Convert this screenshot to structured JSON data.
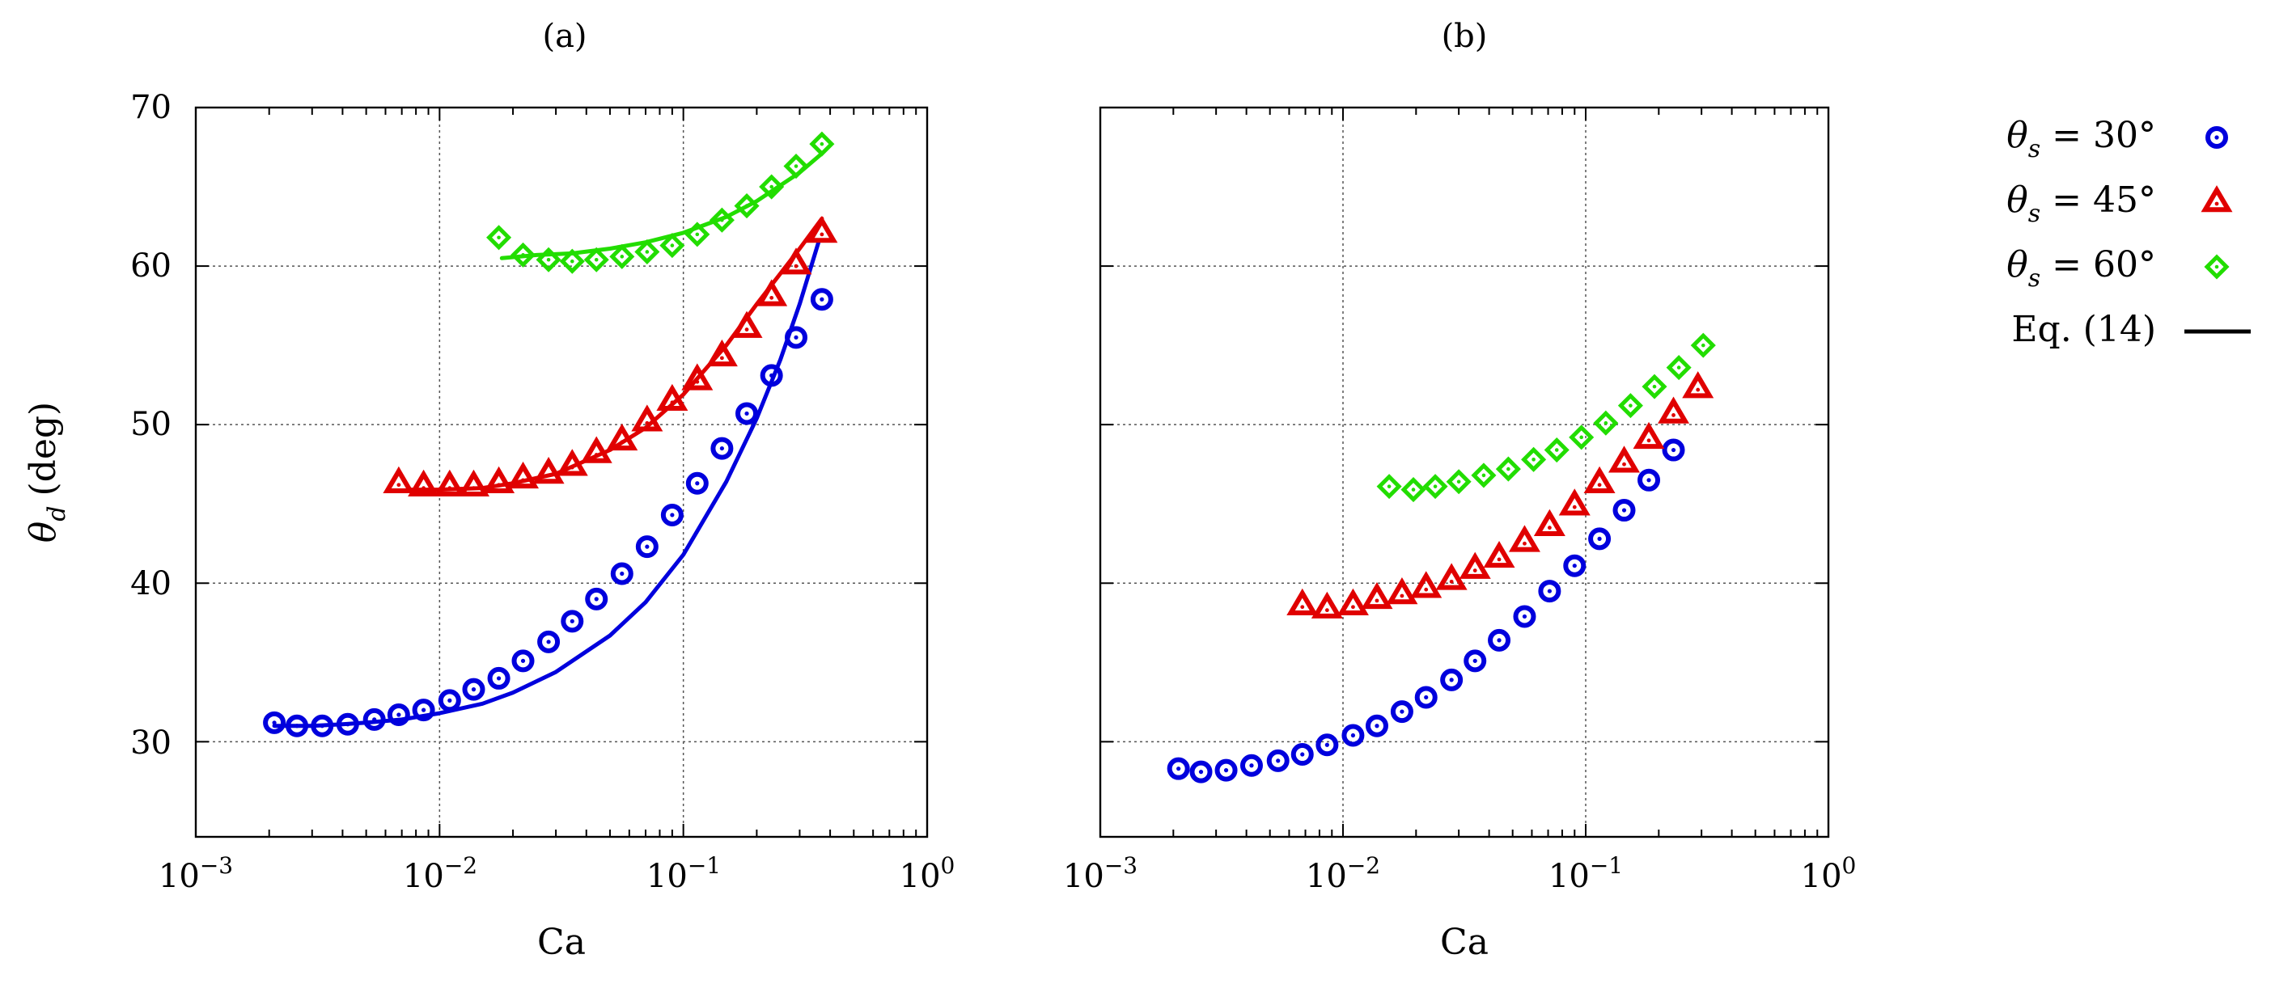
{
  "chart_data": {
    "type": "scatter",
    "y_axis_label": {
      "symbol": "θ",
      "subscript": "d",
      "unit": "(deg)"
    },
    "x_scale": "log",
    "xlim": [
      0.001,
      1
    ],
    "ylim": [
      24,
      70
    ],
    "y_ticks": [
      30,
      40,
      50,
      60,
      70
    ],
    "x_ticks": [
      {
        "value": 0.001,
        "base": "10",
        "exp": "−3"
      },
      {
        "value": 0.01,
        "base": "10",
        "exp": "−2"
      },
      {
        "value": 0.1,
        "base": "10",
        "exp": "−1"
      },
      {
        "value": 1,
        "base": "10",
        "exp": "0"
      }
    ],
    "xlabel": "Ca",
    "legend": {
      "position": "right",
      "entries": [
        {
          "symbol": "θ",
          "subscript": "s",
          "rest": " = 30°",
          "marker": "circle",
          "color": "#0000dd"
        },
        {
          "symbol": "θ",
          "subscript": "s",
          "rest": " = 45°",
          "marker": "triangle",
          "color": "#e00000"
        },
        {
          "symbol": "θ",
          "subscript": "s",
          "rest": " = 60°",
          "marker": "diamond",
          "color": "#22dd00"
        },
        {
          "text": "Eq. (14)",
          "marker": "line",
          "color": "#000000"
        }
      ]
    },
    "panels": [
      {
        "title": "(a)",
        "series": [
          {
            "name": "θs = 30°",
            "marker": "circle",
            "color": "#0000dd",
            "x": [
              0.0021,
              0.0026,
              0.0033,
              0.0042,
              0.0054,
              0.0068,
              0.0086,
              0.011,
              0.0138,
              0.0175,
              0.022,
              0.028,
              0.035,
              0.044,
              0.056,
              0.071,
              0.09,
              0.114,
              0.144,
              0.182,
              0.23,
              0.29,
              0.37
            ],
            "y": [
              31.2,
              31.0,
              31.0,
              31.1,
              31.4,
              31.7,
              32.0,
              32.6,
              33.3,
              34.0,
              35.1,
              36.3,
              37.6,
              39.0,
              40.6,
              42.3,
              44.3,
              46.3,
              48.5,
              50.7,
              53.1,
              55.5,
              57.9
            ]
          },
          {
            "name": "θs = 45°",
            "marker": "triangle",
            "color": "#e00000",
            "x": [
              0.0068,
              0.0086,
              0.011,
              0.0138,
              0.0175,
              0.022,
              0.028,
              0.035,
              0.044,
              0.056,
              0.071,
              0.09,
              0.114,
              0.144,
              0.182,
              0.23,
              0.29,
              0.37
            ],
            "y": [
              46.3,
              46.1,
              46.1,
              46.1,
              46.3,
              46.6,
              46.9,
              47.4,
              48.2,
              49.0,
              50.2,
              51.5,
              52.8,
              54.3,
              56.1,
              58.1,
              60.1,
              62.1
            ]
          },
          {
            "name": "θs = 60°",
            "marker": "diamond",
            "color": "#22dd00",
            "x": [
              0.0175,
              0.022,
              0.028,
              0.035,
              0.044,
              0.056,
              0.071,
              0.09,
              0.114,
              0.144,
              0.182,
              0.23,
              0.29,
              0.37
            ],
            "y": [
              61.8,
              60.7,
              60.4,
              60.3,
              60.4,
              60.6,
              60.9,
              61.3,
              62.0,
              62.9,
              63.8,
              65.0,
              66.3,
              67.7
            ]
          },
          {
            "name": "Eq. (14) θs = 30°",
            "marker": "line",
            "color": "#0000dd",
            "x": [
              0.0021,
              0.003,
              0.004,
              0.005,
              0.007,
              0.01,
              0.015,
              0.02,
              0.03,
              0.05,
              0.07,
              0.1,
              0.15,
              0.2,
              0.25,
              0.3,
              0.36
            ],
            "y": [
              31.0,
              31.0,
              31.1,
              31.2,
              31.4,
              31.8,
              32.4,
              33.1,
              34.4,
              36.7,
              38.8,
              41.8,
              46.4,
              50.4,
              54.1,
              57.6,
              61.6
            ]
          },
          {
            "name": "Eq. (14) θs = 45°",
            "marker": "line",
            "color": "#e00000",
            "x": [
              0.0075,
              0.01,
              0.015,
              0.02,
              0.03,
              0.05,
              0.07,
              0.1,
              0.15,
              0.2,
              0.3,
              0.37
            ],
            "y": [
              45.9,
              45.9,
              46.0,
              46.3,
              46.9,
              48.4,
              49.8,
              51.9,
              55.0,
              57.6,
              61.1,
              63.0
            ]
          },
          {
            "name": "Eq. (14) θs = 60°",
            "marker": "line",
            "color": "#22dd00",
            "x": [
              0.018,
              0.025,
              0.035,
              0.05,
              0.07,
              0.1,
              0.15,
              0.2,
              0.3,
              0.37
            ],
            "y": [
              60.5,
              60.7,
              60.8,
              61.1,
              61.5,
              62.1,
              63.1,
              64.1,
              65.9,
              67.1
            ]
          }
        ]
      },
      {
        "title": "(b)",
        "series": [
          {
            "name": "θs = 30°",
            "marker": "circle",
            "color": "#0000dd",
            "x": [
              0.0021,
              0.0026,
              0.0033,
              0.0042,
              0.0054,
              0.0068,
              0.0086,
              0.011,
              0.0138,
              0.0175,
              0.022,
              0.028,
              0.035,
              0.044,
              0.056,
              0.071,
              0.09,
              0.114,
              0.144,
              0.182,
              0.23
            ],
            "y": [
              28.3,
              28.1,
              28.2,
              28.5,
              28.8,
              29.2,
              29.8,
              30.4,
              31.0,
              31.9,
              32.8,
              33.9,
              35.1,
              36.4,
              37.9,
              39.5,
              41.1,
              42.8,
              44.6,
              46.5,
              48.4
            ]
          },
          {
            "name": "θs = 45°",
            "marker": "triangle",
            "color": "#e00000",
            "x": [
              0.0068,
              0.0086,
              0.011,
              0.0138,
              0.0175,
              0.022,
              0.028,
              0.035,
              0.044,
              0.056,
              0.071,
              0.09,
              0.114,
              0.144,
              0.182,
              0.23,
              0.29
            ],
            "y": [
              38.6,
              38.4,
              38.6,
              39.0,
              39.3,
              39.7,
              40.2,
              40.9,
              41.6,
              42.6,
              43.6,
              44.9,
              46.3,
              47.6,
              49.1,
              50.7,
              52.3
            ]
          },
          {
            "name": "θs = 60°",
            "marker": "diamond",
            "color": "#22dd00",
            "x": [
              0.0155,
              0.0195,
              0.024,
              0.03,
              0.038,
              0.048,
              0.061,
              0.076,
              0.096,
              0.121,
              0.153,
              0.192,
              0.242,
              0.305
            ],
            "y": [
              46.1,
              45.9,
              46.1,
              46.4,
              46.8,
              47.2,
              47.8,
              48.4,
              49.2,
              50.1,
              51.2,
              52.4,
              53.6,
              55.0
            ]
          }
        ]
      }
    ]
  }
}
